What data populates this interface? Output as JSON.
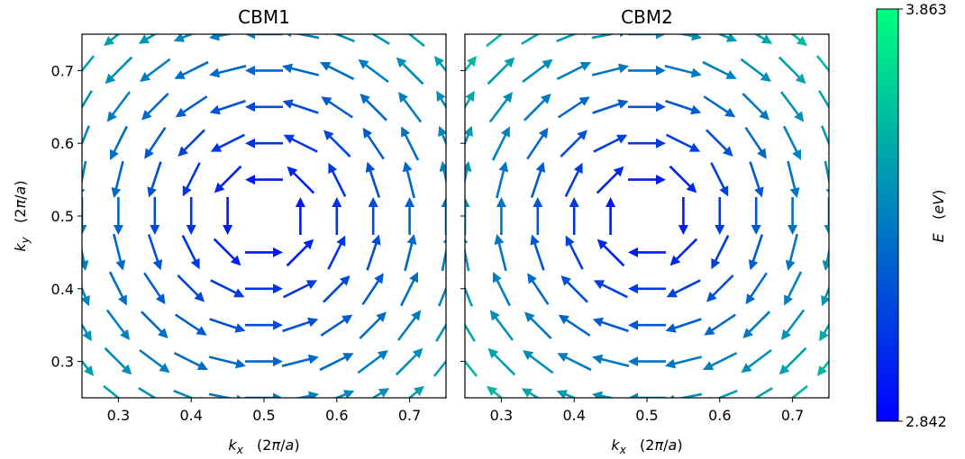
{
  "chart_data": [
    {
      "type": "quiver",
      "title": "CBM1",
      "xlabel": "k_x (2π/a)",
      "ylabel": "k_y (2π/a)",
      "xlim": [
        0.25,
        0.75
      ],
      "ylim": [
        0.25,
        0.75
      ],
      "xticks": [
        0.3,
        0.4,
        0.5,
        0.6,
        0.7
      ],
      "yticks": [
        0.3,
        0.4,
        0.5,
        0.6,
        0.7
      ],
      "center": [
        0.5,
        0.5
      ],
      "rotation": "counterclockwise",
      "energy_range_eV": [
        2.842,
        3.863
      ],
      "energy_at_center_eV": 2.842,
      "energy_at_corner_eV": 3.55
    },
    {
      "type": "quiver",
      "title": "CBM2",
      "xlabel": "k_x (2π/a)",
      "ylabel": "",
      "xlim": [
        0.25,
        0.75
      ],
      "ylim": [
        0.25,
        0.75
      ],
      "xticks": [
        0.3,
        0.4,
        0.5,
        0.6,
        0.7
      ],
      "yticks": [
        0.3,
        0.4,
        0.5,
        0.6,
        0.7
      ],
      "center": [
        0.5,
        0.5
      ],
      "rotation": "clockwise",
      "energy_range_eV": [
        2.842,
        3.863
      ],
      "energy_at_center_eV": 2.842,
      "energy_at_corner_eV": 3.65
    }
  ],
  "colorbar": {
    "label": "E (eV)",
    "max_label": "3.863",
    "min_label": "2.842",
    "color_min": "#0000ff",
    "color_max": "#00ff80"
  }
}
